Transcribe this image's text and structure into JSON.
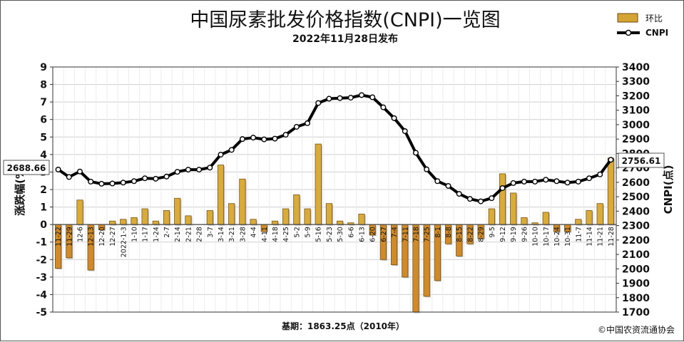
{
  "chart_data": {
    "type": "bar+line",
    "title": "中国尿素批发价格指数(CNPI)一览图",
    "subtitle": "2022年11月28日发布",
    "ylabel_left": "涨跌幅(%)",
    "ylabel_right": "CNPI(点)",
    "ylim_left": [
      -5,
      9
    ],
    "ylim_right": [
      1700,
      3400
    ],
    "yticks_left": [
      9,
      8,
      7,
      6,
      5,
      4,
      3,
      2,
      1,
      0,
      -1,
      -2,
      -3,
      -4,
      -5
    ],
    "yticks_right": [
      3400,
      3300,
      3200,
      3100,
      3000,
      2900,
      2800,
      2700,
      2600,
      2500,
      2400,
      2300,
      2200,
      2100,
      2000,
      1900,
      1800,
      1700
    ],
    "grid": true,
    "legend_position": "top-right",
    "legend": [
      {
        "label": "环比",
        "kind": "bar"
      },
      {
        "label": "CNPI",
        "kind": "line"
      }
    ],
    "categories": [
      "11-22",
      "11-29",
      "12-6",
      "12-13",
      "12-20",
      "12-27",
      "2022-1-3",
      "1-10",
      "1-17",
      "1-24",
      "2-7",
      "2-14",
      "2-21",
      "2-28",
      "3-7",
      "3-14",
      "3-21",
      "3-28",
      "4-4",
      "4-11",
      "4-18",
      "4-25",
      "5-2",
      "5-9",
      "5-16",
      "5-23",
      "5-30",
      "6-6",
      "6-13",
      "6-20",
      "6-27",
      "7-4",
      "7-11",
      "7-18",
      "7-25",
      "8-1",
      "8-8",
      "8-15",
      "8-22",
      "8-29",
      "9-5",
      "9-12",
      "9-19",
      "9-26",
      "10-10",
      "10-17",
      "10-24",
      "10-31",
      "11-7",
      "11-14",
      "11-21",
      "11-28"
    ],
    "series": [
      {
        "name": "环比",
        "kind": "bar",
        "values": [
          -2.5,
          -1.9,
          1.4,
          -2.6,
          -0.3,
          0.2,
          0.3,
          0.4,
          0.9,
          0.2,
          0.8,
          1.5,
          0.5,
          0.0,
          0.8,
          3.4,
          1.2,
          2.6,
          0.3,
          -0.4,
          0.2,
          0.9,
          1.7,
          0.9,
          4.6,
          1.2,
          0.2,
          0.1,
          0.6,
          -0.6,
          -2.0,
          -2.3,
          -3.0,
          -5.0,
          -4.1,
          -3.2,
          -1.1,
          -1.8,
          -1.1,
          -0.8,
          0.9,
          2.9,
          1.8,
          0.4,
          0.1,
          0.7,
          -0.4,
          -0.4,
          0.3,
          0.8,
          1.2,
          3.8
        ]
      },
      {
        "name": "CNPI",
        "kind": "line",
        "values": [
          2688.66,
          2637,
          2675,
          2605,
          2590,
          2592,
          2598,
          2608,
          2628,
          2625,
          2640,
          2673,
          2688,
          2688,
          2702,
          2792,
          2825,
          2900,
          2910,
          2898,
          2903,
          2930,
          2985,
          3010,
          3150,
          3180,
          3184,
          3187,
          3205,
          3190,
          3120,
          3045,
          2955,
          2805,
          2690,
          2608,
          2575,
          2520,
          2485,
          2468,
          2490,
          2560,
          2595,
          2605,
          2605,
          2618,
          2608,
          2598,
          2605,
          2628,
          2655,
          2756.61
        ]
      }
    ],
    "start_label": "2688.66",
    "end_label": "2756.61",
    "footnote_base": "基期：1863.25点（2010年）",
    "footnote_source": "©中国农资流通协会"
  }
}
